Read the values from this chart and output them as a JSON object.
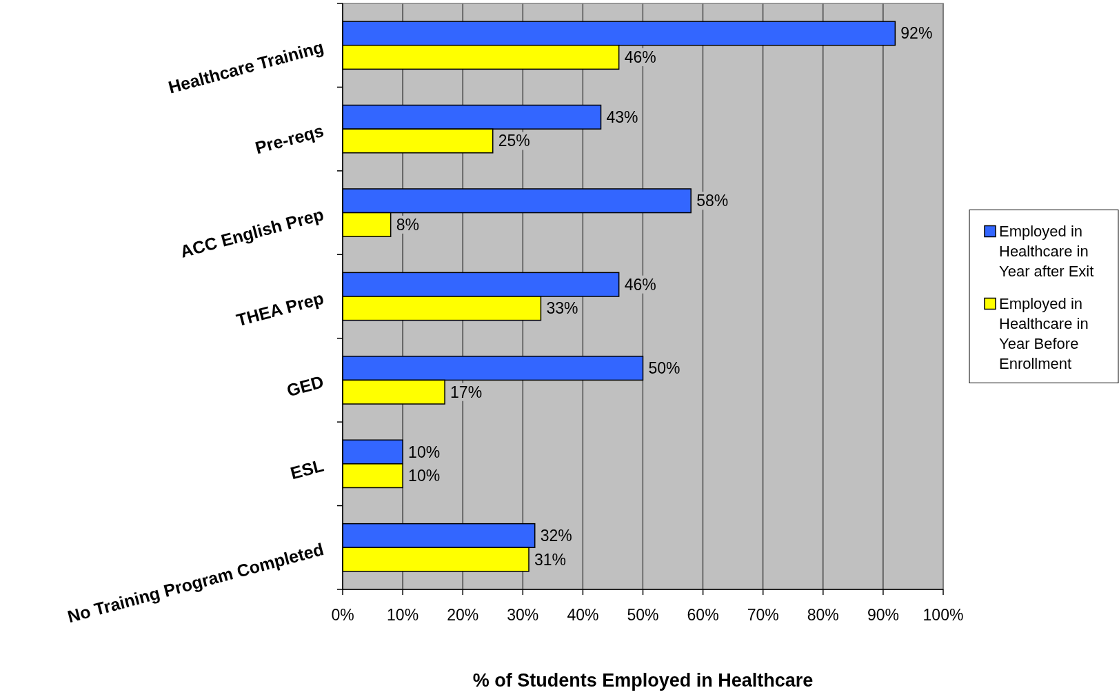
{
  "chart_data": {
    "type": "bar",
    "orientation": "horizontal",
    "xlabel": "% of Students Employed in Healthcare",
    "categories": [
      "Healthcare Training",
      "Pre-reqs",
      "ACC English Prep",
      "THEA Prep",
      "GED",
      "ESL",
      "No Training Program Completed"
    ],
    "series": [
      {
        "name": "Employed in Healthcare in Year after Exit",
        "color": "#3366ff",
        "values": [
          92,
          43,
          58,
          46,
          50,
          10,
          32
        ],
        "value_labels": [
          "92%",
          "43%",
          "58%",
          "46%",
          "50%",
          "10%",
          "32%"
        ]
      },
      {
        "name": "Employed in Healthcare in Year Before Enrollment",
        "color": "#ffff00",
        "values": [
          46,
          25,
          8,
          33,
          17,
          10,
          31
        ],
        "value_labels": [
          "46%",
          "25%",
          "8%",
          "33%",
          "17%",
          "10%",
          "31%"
        ]
      }
    ],
    "xlim": [
      0,
      100
    ],
    "xticks": [
      {
        "value": 0,
        "label": "0%"
      },
      {
        "value": 10,
        "label": "10%"
      },
      {
        "value": 20,
        "label": "20%"
      },
      {
        "value": 30,
        "label": "30%"
      },
      {
        "value": 40,
        "label": "40%"
      },
      {
        "value": 50,
        "label": "50%"
      },
      {
        "value": 60,
        "label": "60%"
      },
      {
        "value": 70,
        "label": "70%"
      },
      {
        "value": 80,
        "label": "80%"
      },
      {
        "value": 90,
        "label": "90%"
      },
      {
        "value": 100,
        "label": "100%"
      }
    ],
    "grid": "x",
    "legend": "right"
  }
}
